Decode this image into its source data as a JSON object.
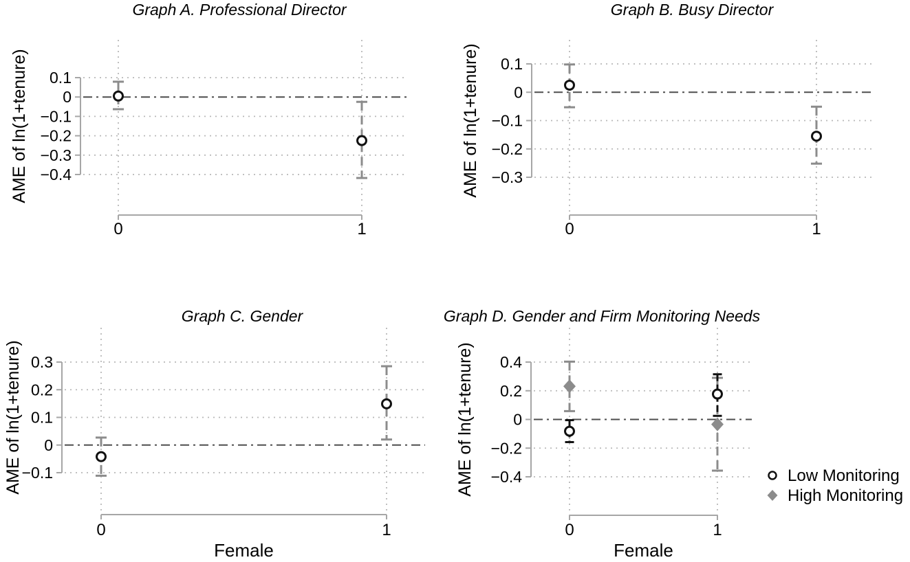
{
  "figure": {
    "background": "#ffffff",
    "text_color": "#000000",
    "axis_color": "#a6a6a6",
    "grid_color": "#b8b8b8",
    "zero_line_color": "#4d4d4d",
    "gray_series_color": "#8c8c8c",
    "black_series_color": "#111111"
  },
  "chart_data": [
    {
      "id": "A",
      "type": "scatter",
      "title": "Graph A. Professional Director",
      "ylabel": "AME of ln(1+tenure)",
      "xlabel": "",
      "x": [
        0,
        1
      ],
      "xtick_labels": [
        "0",
        "1"
      ],
      "yticks": [
        0.1,
        0,
        -0.1,
        -0.2,
        -0.3,
        -0.4
      ],
      "ytick_labels": [
        "0.1",
        "0",
        "−0.1",
        "−0.2",
        "−0.3",
        "−0.4"
      ],
      "ylim": [
        -0.4,
        0.1
      ],
      "grid": true,
      "zero_line": true,
      "series": [
        {
          "name": "AME",
          "marker": "circle",
          "whisker_style": "gray-dashed",
          "points": [
            {
              "x": 0,
              "y": 0.005,
              "ci_low": -0.063,
              "ci_high": 0.079
            },
            {
              "x": 1,
              "y": -0.225,
              "ci_low": -0.418,
              "ci_high": -0.025
            }
          ]
        }
      ]
    },
    {
      "id": "B",
      "type": "scatter",
      "title": "Graph B. Busy Director",
      "ylabel": "AME of ln(1+tenure)",
      "xlabel": "",
      "x": [
        0,
        1
      ],
      "xtick_labels": [
        "0",
        "1"
      ],
      "yticks": [
        0.1,
        0,
        -0.1,
        -0.2,
        -0.3
      ],
      "ytick_labels": [
        "0.1",
        "0",
        "−0.1",
        "−0.2",
        "−0.3"
      ],
      "ylim": [
        -0.3,
        0.1
      ],
      "grid": true,
      "zero_line": true,
      "series": [
        {
          "name": "AME",
          "marker": "circle",
          "whisker_style": "gray-dashed",
          "points": [
            {
              "x": 0,
              "y": 0.025,
              "ci_low": -0.053,
              "ci_high": 0.098
            },
            {
              "x": 1,
              "y": -0.155,
              "ci_low": -0.252,
              "ci_high": -0.051
            }
          ]
        }
      ]
    },
    {
      "id": "C",
      "type": "scatter",
      "title": "Graph C. Gender",
      "ylabel": "AME of ln(1+tenure)",
      "xlabel": "Female",
      "x": [
        0,
        1
      ],
      "xtick_labels": [
        "0",
        "1"
      ],
      "yticks": [
        0.3,
        0.2,
        0.1,
        0,
        -0.1
      ],
      "ytick_labels": [
        "0.3",
        "0.2",
        "0.1",
        "0",
        "−0.1"
      ],
      "ylim": [
        -0.1,
        0.3
      ],
      "grid": true,
      "zero_line": true,
      "series": [
        {
          "name": "AME",
          "marker": "circle",
          "whisker_style": "gray-dashed",
          "points": [
            {
              "x": 0,
              "y": -0.042,
              "ci_low": -0.111,
              "ci_high": 0.027
            },
            {
              "x": 1,
              "y": 0.149,
              "ci_low": 0.02,
              "ci_high": 0.285
            }
          ]
        }
      ]
    },
    {
      "id": "D",
      "type": "scatter",
      "title": "Graph D. Gender and Firm Monitoring Needs",
      "ylabel": "AME of ln(1+tenure)",
      "xlabel": "Female",
      "x": [
        0,
        1
      ],
      "xtick_labels": [
        "0",
        "1"
      ],
      "yticks": [
        0.4,
        0.2,
        0,
        -0.2,
        -0.4
      ],
      "ytick_labels": [
        "0.4",
        "0.2",
        "0",
        "−0.2",
        "−0.4"
      ],
      "ylim": [
        -0.4,
        0.4
      ],
      "grid": true,
      "zero_line": true,
      "legend": {
        "position": "right",
        "items": [
          {
            "label": "Low Monitoring",
            "marker": "circle"
          },
          {
            "label": "High Monitoring",
            "marker": "diamond"
          }
        ]
      },
      "series": [
        {
          "name": "High Monitoring",
          "marker": "diamond",
          "whisker_style": "gray-dashed",
          "points": [
            {
              "x": 0,
              "y": 0.231,
              "ci_low": 0.058,
              "ci_high": 0.403
            },
            {
              "x": 1,
              "y": -0.034,
              "ci_low": -0.357,
              "ci_high": 0.29
            }
          ]
        },
        {
          "name": "Low Monitoring",
          "marker": "circle",
          "whisker_style": "black-dashed",
          "points": [
            {
              "x": 0,
              "y": -0.082,
              "ci_low": -0.158,
              "ci_high": -0.005
            },
            {
              "x": 1,
              "y": 0.177,
              "ci_low": 0.025,
              "ci_high": 0.315
            }
          ]
        }
      ]
    }
  ]
}
